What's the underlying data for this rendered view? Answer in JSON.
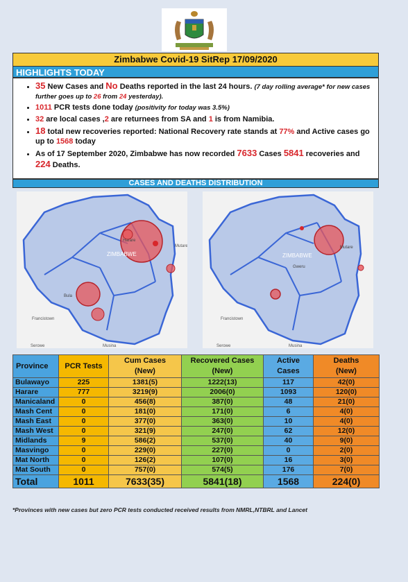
{
  "header": {
    "title": "Zimbabwe Covid-19 SitRep 17/09/2020",
    "highlights_label": "HIGHLIGHTS TODAY",
    "distribution_label": "CASES AND DEATHS DISTRIBUTION"
  },
  "highlights": {
    "b1": {
      "n1": "35",
      "t1": " New Cases and ",
      "n2": "No",
      "t2": " Deaths reported in the last 24 hours. ",
      "i1": "(7 day rolling average* for new cases further goes up to ",
      "i2": "26",
      "i3": " from ",
      "i4": "24",
      "i5": " yesterday)."
    },
    "b2": {
      "n1": "1011",
      "t1": " PCR tests done today ",
      "i1": "(positivity for today was 3.5%)"
    },
    "b3": {
      "n1": "32",
      "t1": " are local cases ,",
      "n2": "2",
      "t2": " are returnees from SA and ",
      "n3": "1",
      "t3": " is from Namibia."
    },
    "b4": {
      "n1": "18",
      "t1": " total new recoveries reported: National Recovery rate stands at ",
      "n2": "77%",
      "t2": " and Active cases go up to ",
      "n3": "1568",
      "t3": " today"
    },
    "b5": {
      "t1": "As of 17 September 2020, Zimbabwe has now recorded ",
      "n1": "7633",
      "t2": " Cases ",
      "n2": "5841",
      "t3": " recoveries and ",
      "n3": "224",
      "t4": " Deaths."
    }
  },
  "maps": {
    "labels": {
      "country": "ZIMBABWE",
      "harare": "Harare",
      "bulawayo": "Bula",
      "francistown": "Francistown",
      "mutare": "Mutare",
      "serowe": "Serowe",
      "musina": "Musina",
      "gweru": "Gweru"
    },
    "colors": {
      "land": "#b9c9e8",
      "border": "#3a66d6",
      "bubble": "#e8555a"
    }
  },
  "table": {
    "headers": {
      "province": "Province",
      "pcr": "PCR Tests",
      "cum1": "Cum Cases",
      "cum2": "(New)",
      "rec1": "Recovered Cases",
      "rec2": "(New)",
      "act1": "Active",
      "act2": "Cases",
      "dth1": "Deaths",
      "dth2": "(New)"
    },
    "rows": [
      {
        "province": "Bulawayo",
        "pcr": "225",
        "cum": "1381(5)",
        "rec": "1222(13)",
        "act": "117",
        "dth": "42(0)"
      },
      {
        "province": "Harare",
        "pcr": "777",
        "cum": "3219(9)",
        "rec": "2006(0)",
        "act": "1093",
        "dth": "120(0)"
      },
      {
        "province": "Manicaland",
        "pcr": "0",
        "cum": "456(8)",
        "rec": "387(0)",
        "act": "48",
        "dth": "21(0)"
      },
      {
        "province": "Mash Cent",
        "pcr": "0",
        "cum": "181(0)",
        "rec": "171(0)",
        "act": "6",
        "dth": "4(0)"
      },
      {
        "province": "Mash East",
        "pcr": "0",
        "cum": "377(0)",
        "rec": "363(0)",
        "act": "10",
        "dth": "4(0)"
      },
      {
        "province": "Mash West",
        "pcr": "0",
        "cum": "321(9)",
        "rec": "247(0)",
        "act": "62",
        "dth": "12(0)"
      },
      {
        "province": "Midlands",
        "pcr": "9",
        "cum": "586(2)",
        "rec": "537(0)",
        "act": "40",
        "dth": "9(0)"
      },
      {
        "province": "Masvingo",
        "pcr": "0",
        "cum": "229(0)",
        "rec": "227(0)",
        "act": "0",
        "dth": "2(0)"
      },
      {
        "province": "Mat North",
        "pcr": "0",
        "cum": "126(2)",
        "rec": "107(0)",
        "act": "16",
        "dth": "3(0)"
      },
      {
        "province": "Mat South",
        "pcr": "0",
        "cum": "757(0)",
        "rec": "574(5)",
        "act": "176",
        "dth": "7(0)"
      }
    ],
    "total": {
      "province": "Total",
      "pcr": "1011",
      "cum": "7633(35)",
      "rec": "5841(18)",
      "act": "1568",
      "dth": "224(0)"
    }
  },
  "footnote": "*Provinces with new cases but zero PCR tests conducted received results from NMRL,NTBRL and Lancet"
}
